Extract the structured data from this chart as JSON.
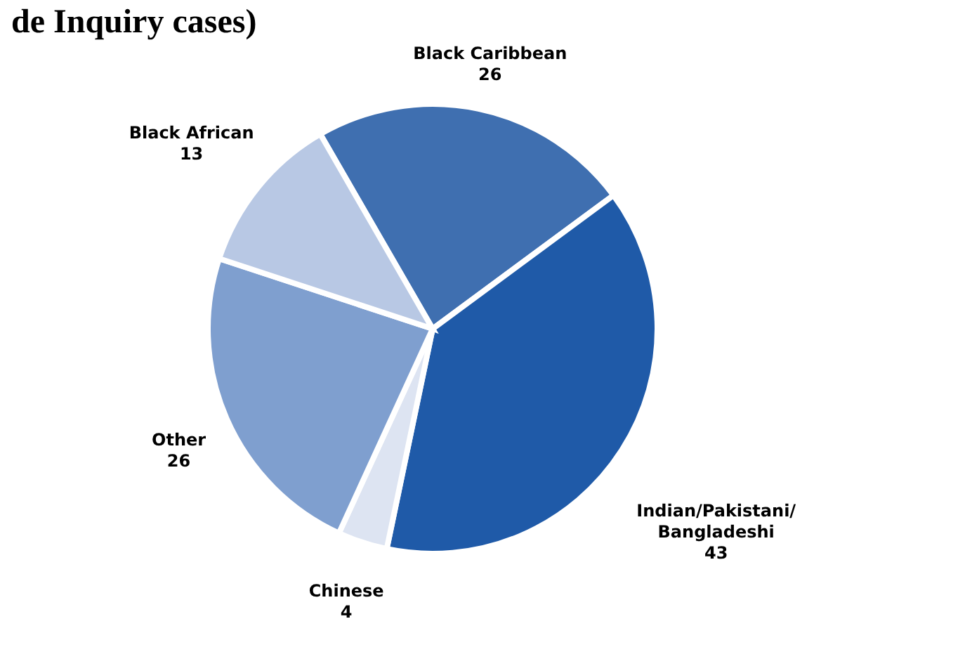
{
  "chart_data": {
    "type": "pie",
    "title": "de Inquiry cases)",
    "categories": [
      "Black Caribbean",
      "Indian/Pakistani/Bangladeshi",
      "Chinese",
      "Other",
      "Black African"
    ],
    "values": [
      26,
      43,
      4,
      26,
      13
    ],
    "colors": [
      "#3f6fb0",
      "#1f5aa8",
      "#dde4f2",
      "#7f9fcf",
      "#b8c8e4"
    ],
    "data_labels": true,
    "legend": false
  }
}
